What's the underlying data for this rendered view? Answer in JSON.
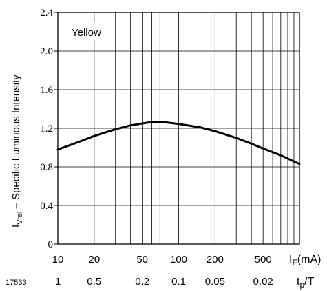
{
  "chart_data": {
    "type": "line",
    "figure_id": "17533",
    "annotation": "Yellow",
    "ylabel_prefix": "I",
    "ylabel_sub": "Vrel",
    "ylabel_suffix": " – Specific Luminous Intensity",
    "x_axis_label": {
      "main": "I",
      "sub": "F",
      "rest": "(mA)"
    },
    "x2_axis_label": {
      "main": "t",
      "sub": "p",
      "rest": "/T"
    },
    "x_scale": "log",
    "xlim": [
      10,
      1000
    ],
    "ylim": [
      0,
      2.4
    ],
    "grid": true,
    "y_ticks": [
      "0",
      "0.4",
      "0.8",
      "1.2",
      "1.6",
      "2.0",
      "2.4"
    ],
    "y_tick_values": [
      0,
      0.4,
      0.8,
      1.2,
      1.6,
      2.0,
      2.4
    ],
    "x_ticks": [
      {
        "value": 10,
        "label": "10"
      },
      {
        "value": 20,
        "label": "20"
      },
      {
        "value": 50,
        "label": "50"
      },
      {
        "value": 100,
        "label": "100"
      },
      {
        "value": 200,
        "label": "200"
      },
      {
        "value": 500,
        "label": "500"
      }
    ],
    "x2_ticks": [
      {
        "value": 10,
        "label": "1"
      },
      {
        "value": 20,
        "label": "0.5"
      },
      {
        "value": 50,
        "label": "0.2"
      },
      {
        "value": 100,
        "label": "0.1"
      },
      {
        "value": 200,
        "label": "0.05"
      },
      {
        "value": 500,
        "label": "0.02"
      }
    ],
    "series": [
      {
        "x": [
          10,
          15,
          20,
          30,
          40,
          50,
          60,
          70,
          80,
          100,
          150,
          200,
          300,
          400,
          500,
          700,
          1000
        ],
        "y": [
          0.98,
          1.06,
          1.12,
          1.19,
          1.23,
          1.25,
          1.265,
          1.265,
          1.26,
          1.245,
          1.21,
          1.17,
          1.1,
          1.04,
          0.99,
          0.92,
          0.83
        ]
      }
    ]
  }
}
